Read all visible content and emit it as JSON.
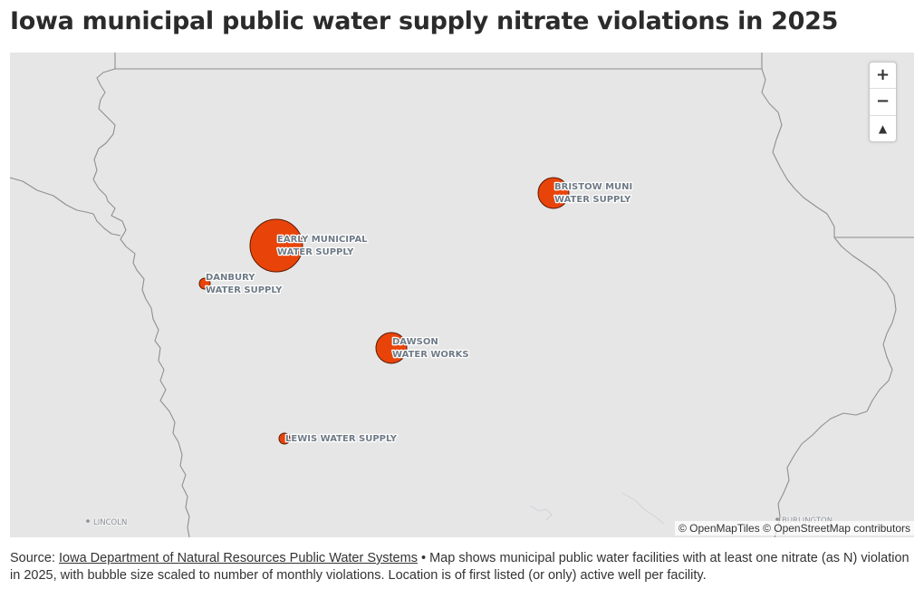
{
  "title": "Iowa municipal public water supply nitrate violations in 2025",
  "map": {
    "background_color": "#e6e6e6",
    "bubble_color": "#e8440a",
    "cities": [
      {
        "name": "LINCOLN"
      },
      {
        "name": "BURLINGTON"
      }
    ],
    "facilities": [
      {
        "name_line1": "EARLY MUNICIPAL",
        "name_line2": "WATER SUPPLY"
      },
      {
        "name_line1": "BRISTOW MUNI",
        "name_line2": "WATER SUPPLY"
      },
      {
        "name_line1": "DAWSON",
        "name_line2": "WATER WORKS"
      },
      {
        "name_line1": "DANBURY",
        "name_line2": "WATER SUPPLY"
      },
      {
        "name_line1": "LEWIS WATER SUPPLY",
        "name_line2": ""
      }
    ],
    "controls": {
      "zoom_in": "+",
      "zoom_out": "−",
      "compass": "▲"
    },
    "attribution": "© OpenMapTiles © OpenStreetMap contributors"
  },
  "caption": {
    "prefix": "Source: ",
    "source_link": "Iowa Department of Natural Resources Public Water Systems",
    "text": " • Map shows municipal public water facilities with at least one nitrate (as N) violation in 2025, with bubble size scaled to number of monthly violations. Location is of first listed (or only) active well per facility."
  }
}
